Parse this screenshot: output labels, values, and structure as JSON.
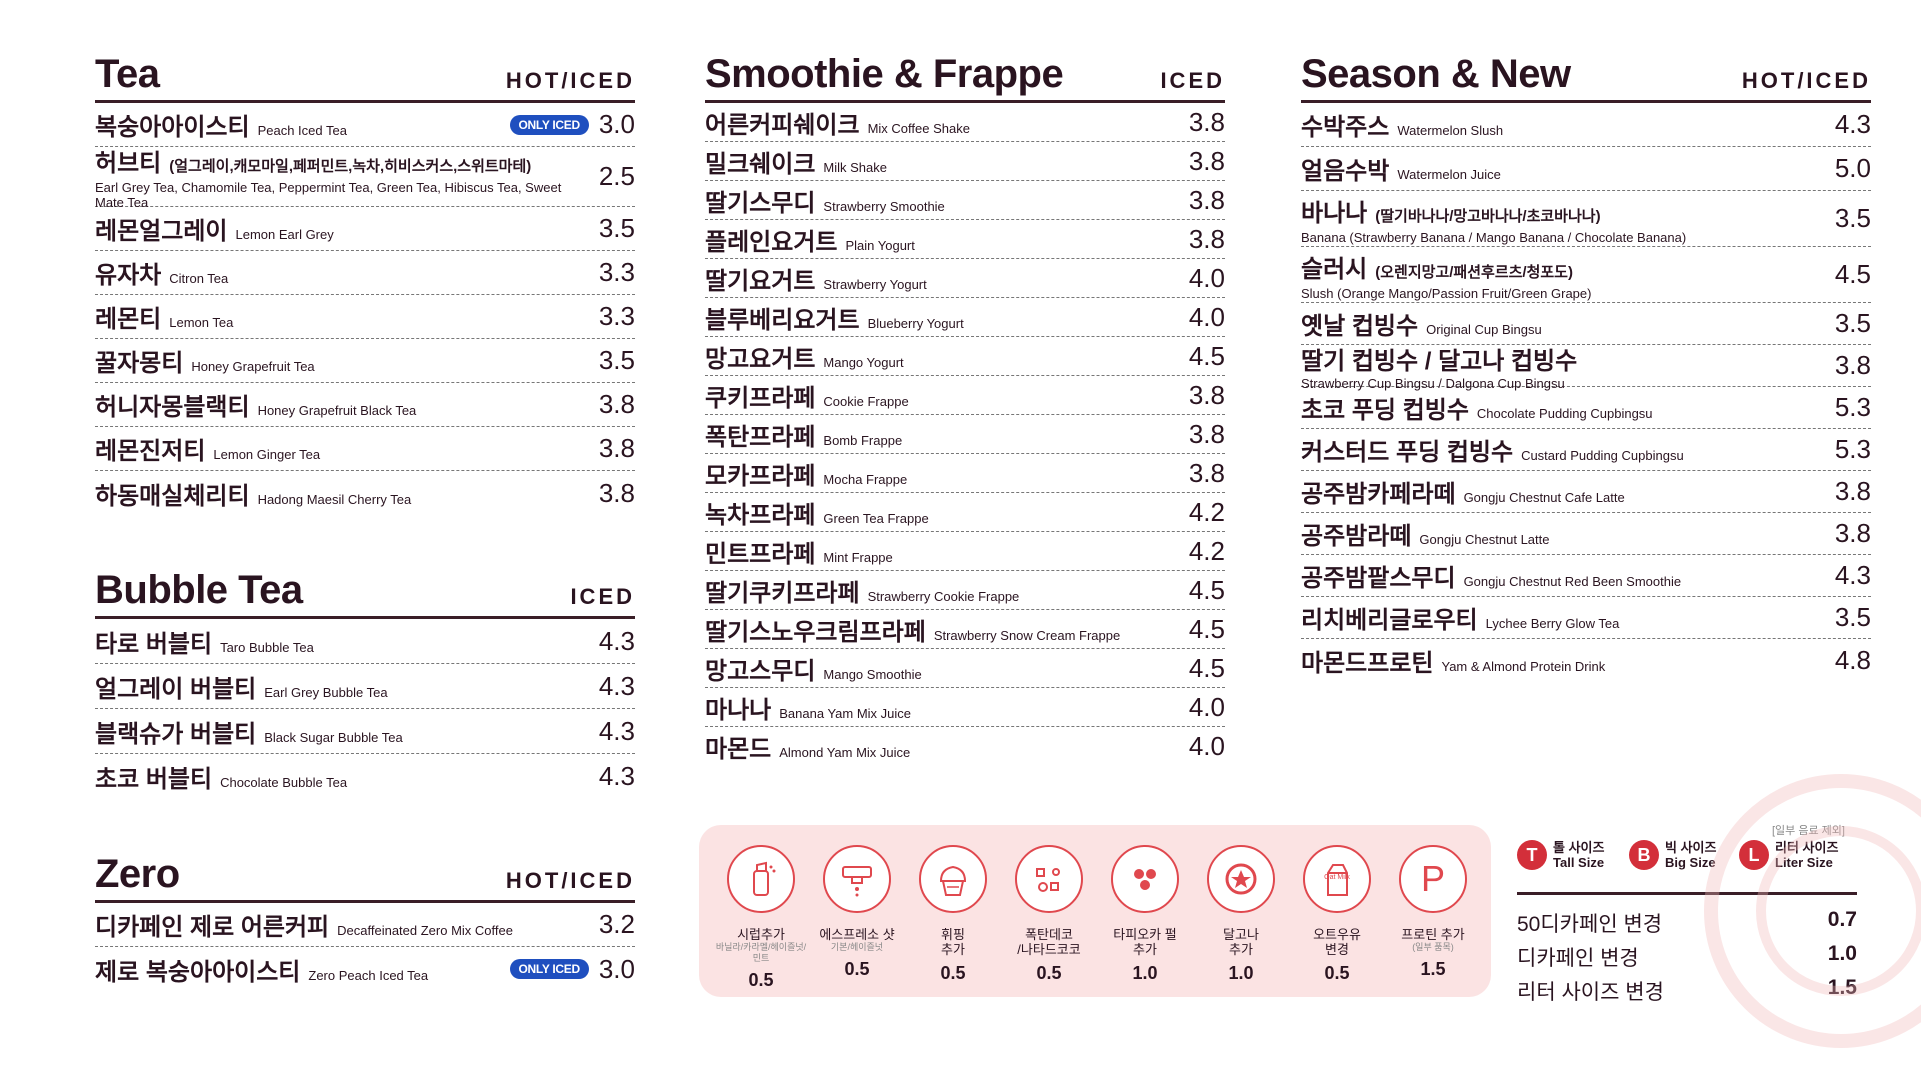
{
  "tea": {
    "title": "Tea",
    "temp": "HOT/ICED",
    "items": [
      {
        "ko": "복숭아아이스티",
        "en": "Peach Iced Tea",
        "badge": "ONLY ICED",
        "price": "3.0"
      },
      {
        "ko": "허브티",
        "ko_paren": "(얼그레이,캐모마일,페퍼민트,녹차,히비스커스,스위트마테)",
        "sub": "Earl Grey Tea, Chamomile Tea, Peppermint Tea, Green Tea, Hibiscus Tea, Sweet Mate Tea",
        "price": "2.5"
      },
      {
        "ko": "레몬얼그레이",
        "en": "Lemon Earl Grey",
        "price": "3.5"
      },
      {
        "ko": "유자차",
        "en": "Citron Tea",
        "price": "3.3"
      },
      {
        "ko": "레몬티",
        "en": "Lemon Tea",
        "price": "3.3"
      },
      {
        "ko": "꿀자몽티",
        "en": "Honey Grapefruit Tea",
        "price": "3.5"
      },
      {
        "ko": "허니자몽블랙티",
        "en": "Honey Grapefruit Black Tea",
        "price": "3.8"
      },
      {
        "ko": "레몬진저티",
        "en": "Lemon Ginger Tea",
        "price": "3.8"
      },
      {
        "ko": "하동매실체리티",
        "en": "Hadong Maesil Cherry Tea",
        "price": "3.8"
      }
    ]
  },
  "bubble": {
    "title": "Bubble Tea",
    "temp": "ICED",
    "items": [
      {
        "ko": "타로 버블티",
        "en": "Taro Bubble Tea",
        "price": "4.3"
      },
      {
        "ko": "얼그레이 버블티",
        "en": "Earl Grey Bubble Tea",
        "price": "4.3"
      },
      {
        "ko": "블랙슈가 버블티",
        "en": "Black Sugar Bubble Tea",
        "price": "4.3"
      },
      {
        "ko": "초코 버블티",
        "en": "Chocolate Bubble Tea",
        "price": "4.3"
      }
    ]
  },
  "zero": {
    "title": "Zero",
    "temp": "HOT/ICED",
    "items": [
      {
        "ko": "디카페인 제로 어른커피",
        "en": "Decaffeinated Zero Mix Coffee",
        "price": "3.2"
      },
      {
        "ko": "제로 복숭아아이스티",
        "en": "Zero Peach Iced Tea",
        "badge": "ONLY ICED",
        "price": "3.0"
      }
    ]
  },
  "smoothie": {
    "title": "Smoothie & Frappe",
    "temp": "ICED",
    "items": [
      {
        "ko": "어른커피쉐이크",
        "en": "Mix Coffee Shake",
        "price": "3.8"
      },
      {
        "ko": "밀크쉐이크",
        "en": "Milk Shake",
        "price": "3.8"
      },
      {
        "ko": "딸기스무디",
        "en": "Strawberry Smoothie",
        "price": "3.8"
      },
      {
        "ko": "플레인요거트",
        "en": "Plain Yogurt",
        "price": "3.8"
      },
      {
        "ko": "딸기요거트",
        "en": "Strawberry Yogurt",
        "price": "4.0"
      },
      {
        "ko": "블루베리요거트",
        "en": "Blueberry Yogurt",
        "price": "4.0"
      },
      {
        "ko": "망고요거트",
        "en": "Mango Yogurt",
        "price": "4.5"
      },
      {
        "ko": "쿠키프라페",
        "en": "Cookie Frappe",
        "price": "3.8"
      },
      {
        "ko": "폭탄프라페",
        "en": "Bomb Frappe",
        "price": "3.8"
      },
      {
        "ko": "모카프라페",
        "en": "Mocha Frappe",
        "price": "3.8"
      },
      {
        "ko": "녹차프라페",
        "en": "Green Tea Frappe",
        "price": "4.2"
      },
      {
        "ko": "민트프라페",
        "en": "Mint Frappe",
        "price": "4.2"
      },
      {
        "ko": "딸기쿠키프라페",
        "en": "Strawberry Cookie Frappe",
        "price": "4.5"
      },
      {
        "ko": "딸기스노우크림프라페",
        "en": "Strawberry Snow Cream Frappe",
        "price": "4.5"
      },
      {
        "ko": "망고스무디",
        "en": "Mango Smoothie",
        "price": "4.5"
      },
      {
        "ko": "마나나",
        "en": "Banana Yam Mix Juice",
        "price": "4.0"
      },
      {
        "ko": "마몬드",
        "en": "Almond Yam Mix Juice",
        "price": "4.0"
      }
    ]
  },
  "season": {
    "title": "Season & New",
    "temp": "HOT/ICED",
    "items": [
      {
        "ko": "수박주스",
        "en": "Watermelon Slush",
        "price": "4.3"
      },
      {
        "ko": "얼음수박",
        "en": "Watermelon Juice",
        "price": "5.0"
      },
      {
        "ko": "바나나",
        "ko_paren": "(딸기바나나/망고바나나/초코바나나)",
        "sub": "Banana (Strawberry Banana / Mango Banana / Chocolate Banana)",
        "price": "3.5"
      },
      {
        "ko": "슬러시",
        "ko_paren": "(오렌지망고/패션후르츠/청포도)",
        "sub": "Slush (Orange Mango/Passion Fruit/Green Grape)",
        "price": "4.5"
      },
      {
        "ko": "옛날 컵빙수",
        "en": "Original Cup Bingsu",
        "price": "3.5"
      },
      {
        "ko": "딸기 컵빙수 / 달고나 컵빙수",
        "en": "Strawberry Cup Bingsu / Dalgona Cup Bingsu",
        "price": "3.8"
      },
      {
        "ko": "초코 푸딩 컵빙수",
        "en": "Chocolate Pudding Cupbingsu",
        "price": "5.3"
      },
      {
        "ko": "커스터드 푸딩 컵빙수",
        "en": "Custard Pudding Cupbingsu",
        "price": "5.3"
      },
      {
        "ko": "공주밤카페라떼",
        "en": "Gongju Chestnut Cafe Latte",
        "price": "3.8"
      },
      {
        "ko": "공주밤라떼",
        "en": "Gongju Chestnut Latte",
        "price": "3.8"
      },
      {
        "ko": "공주밤팥스무디",
        "en": "Gongju Chestnut Red Been Smoothie",
        "price": "4.3"
      },
      {
        "ko": "리치베리글로우티",
        "en": "Lychee Berry Glow Tea",
        "price": "3.5"
      },
      {
        "ko": "마몬드프로틴",
        "en": "Yam & Almond Protein Drink",
        "price": "4.8"
      }
    ]
  },
  "addons": [
    {
      "name": "시럽추가",
      "detail": "바닐라/카라멜/헤이즐넛/민트",
      "price": "0.5",
      "icon": "syrup-bottle-icon"
    },
    {
      "name": "에스프레소 샷",
      "detail": "기본/헤이즐넛",
      "price": "0.5",
      "icon": "espresso-icon"
    },
    {
      "name": "휘핑\n추가",
      "detail": "",
      "price": "0.5",
      "icon": "whipped-cream-icon"
    },
    {
      "name": "폭탄데코\n/나타드코코",
      "detail": "",
      "price": "0.5",
      "icon": "toppings-icon"
    },
    {
      "name": "타피오카 펄\n추가",
      "detail": "",
      "price": "1.0",
      "icon": "tapioca-pearl-icon"
    },
    {
      "name": "달고나\n추가",
      "detail": "",
      "price": "1.0",
      "icon": "dalgona-icon"
    },
    {
      "name": "오트우유\n변경",
      "detail": "",
      "price": "0.5",
      "icon": "oat-milk-carton-icon",
      "carton_text": "Oat Milk"
    },
    {
      "name": "프로틴 추가",
      "detail": "(일부 품목)",
      "price": "1.5",
      "icon": "protein-p-icon",
      "glyph": "P"
    }
  ],
  "sizes": {
    "note": "[일부 음료 제외]",
    "items": [
      {
        "letter": "T",
        "ko": "톨 사이즈",
        "en": "Tall Size"
      },
      {
        "letter": "B",
        "ko": "빅 사이즈",
        "en": "Big Size"
      },
      {
        "letter": "L",
        "ko": "리터 사이즈",
        "en": "Liter Size"
      }
    ],
    "changes": [
      {
        "label": "50디카페인 변경",
        "price": "0.7"
      },
      {
        "label": "디카페인 변경",
        "price": "1.0"
      },
      {
        "label": "리터 사이즈 변경",
        "price": "1.5"
      }
    ]
  },
  "colors": {
    "accent": "#e0484e",
    "text": "#2a1420",
    "badge": "#1f4fbf",
    "panel": "#fbe3e3"
  }
}
